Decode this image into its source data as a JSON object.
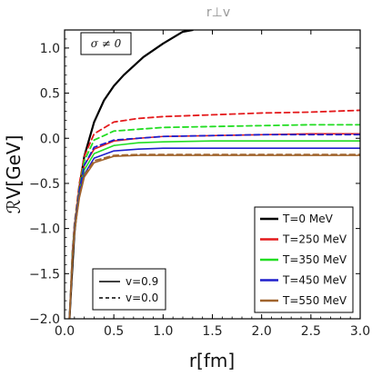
{
  "chart_data": {
    "type": "line",
    "title": "r⊥v",
    "xlabel": "r[fm]",
    "ylabel": "ℛV[GeV]",
    "xlim": [
      0.0,
      3.0
    ],
    "ylim": [
      -2.0,
      1.2
    ],
    "x_ticks": [
      0.0,
      0.5,
      1.0,
      1.5,
      2.0,
      2.5,
      3.0
    ],
    "x_tick_labels": [
      "0.0",
      "0.5",
      "1.0",
      "1.5",
      "2.0",
      "2.5",
      "3.0"
    ],
    "y_ticks": [
      -2.0,
      -1.5,
      -1.0,
      -0.5,
      0.0,
      0.5,
      1.0
    ],
    "y_tick_labels": [
      "−2.0",
      "−1.5",
      "−1.0",
      "−0.5",
      "0.0",
      "0.5",
      "1.0"
    ],
    "annotation": "σ ≠ 0",
    "legend_position": "lower-right",
    "style_legend_position": "lower-left",
    "style_legend": [
      {
        "label": "v=0.9",
        "dash": "solid"
      },
      {
        "label": "v=0.0",
        "dash": "dashed"
      }
    ],
    "series": [
      {
        "name": "T=0 MeV",
        "color": "#000000",
        "dash": "solid",
        "temp": 0
      },
      {
        "name": "T=250 MeV",
        "color": "#e41a1c",
        "dash": "solid",
        "temp": 250
      },
      {
        "name": "T=350 MeV",
        "color": "#22dd22",
        "dash": "solid",
        "temp": 350
      },
      {
        "name": "T=450 MeV",
        "color": "#1f1fcc",
        "dash": "solid",
        "temp": 450
      },
      {
        "name": "T=550 MeV",
        "color": "#a0642d",
        "dash": "solid",
        "temp": 550
      }
    ],
    "curves": [
      {
        "label": "T=0 MeV",
        "color": "#000000",
        "dash": "solid",
        "width": 2.2,
        "x": [
          0.05,
          0.07,
          0.1,
          0.15,
          0.2,
          0.3,
          0.4,
          0.5,
          0.6,
          0.8,
          1.0,
          1.2,
          1.3
        ],
        "y": [
          -2.0,
          -1.6,
          -1.05,
          -0.55,
          -0.2,
          0.18,
          0.42,
          0.58,
          0.7,
          0.9,
          1.05,
          1.18,
          1.2
        ]
      },
      {
        "label": "T=250 MeV, v=0.0",
        "color": "#e41a1c",
        "dash": "dashed",
        "width": 1.8,
        "x": [
          0.05,
          0.08,
          0.1,
          0.15,
          0.2,
          0.3,
          0.5,
          0.75,
          1.0,
          1.5,
          2.0,
          2.5,
          3.0
        ],
        "y": [
          -2.0,
          -1.25,
          -0.95,
          -0.5,
          -0.2,
          0.05,
          0.18,
          0.22,
          0.24,
          0.26,
          0.28,
          0.29,
          0.31
        ]
      },
      {
        "label": "T=250 MeV, v=0.9",
        "color": "#e41a1c",
        "dash": "solid",
        "width": 1.6,
        "x": [
          0.05,
          0.08,
          0.1,
          0.15,
          0.2,
          0.3,
          0.5,
          0.75,
          1.0,
          1.5,
          2.0,
          2.5,
          3.0
        ],
        "y": [
          -2.0,
          -1.25,
          -0.97,
          -0.55,
          -0.3,
          -0.12,
          -0.03,
          0.0,
          0.02,
          0.03,
          0.04,
          0.05,
          0.05
        ]
      },
      {
        "label": "T=350 MeV, v=0.0",
        "color": "#22dd22",
        "dash": "dashed",
        "width": 1.8,
        "x": [
          0.05,
          0.08,
          0.1,
          0.15,
          0.2,
          0.3,
          0.5,
          0.75,
          1.0,
          1.5,
          2.0,
          2.5,
          3.0
        ],
        "y": [
          -2.0,
          -1.27,
          -0.98,
          -0.55,
          -0.25,
          -0.02,
          0.08,
          0.1,
          0.12,
          0.13,
          0.14,
          0.15,
          0.15
        ]
      },
      {
        "label": "T=350 MeV, v=0.9",
        "color": "#22dd22",
        "dash": "solid",
        "width": 1.6,
        "x": [
          0.05,
          0.08,
          0.1,
          0.15,
          0.2,
          0.3,
          0.5,
          0.75,
          1.0,
          1.5,
          2.0,
          2.5,
          3.0
        ],
        "y": [
          -2.0,
          -1.28,
          -1.0,
          -0.6,
          -0.35,
          -0.17,
          -0.08,
          -0.05,
          -0.04,
          -0.03,
          -0.03,
          -0.03,
          -0.03
        ]
      },
      {
        "label": "T=450 MeV, v=0.0",
        "color": "#1f1fcc",
        "dash": "dashed",
        "width": 1.8,
        "x": [
          0.05,
          0.08,
          0.1,
          0.15,
          0.2,
          0.3,
          0.5,
          0.75,
          1.0,
          1.5,
          2.0,
          2.5,
          3.0
        ],
        "y": [
          -2.0,
          -1.3,
          -1.0,
          -0.58,
          -0.3,
          -0.1,
          -0.02,
          0.0,
          0.02,
          0.03,
          0.04,
          0.04,
          0.04
        ]
      },
      {
        "label": "T=450 MeV, v=0.9",
        "color": "#1f1fcc",
        "dash": "solid",
        "width": 1.6,
        "x": [
          0.05,
          0.08,
          0.1,
          0.15,
          0.2,
          0.3,
          0.5,
          0.75,
          1.0,
          1.5,
          2.0,
          2.5,
          3.0
        ],
        "y": [
          -2.0,
          -1.3,
          -1.02,
          -0.63,
          -0.4,
          -0.22,
          -0.14,
          -0.12,
          -0.11,
          -0.11,
          -0.11,
          -0.11,
          -0.11
        ]
      },
      {
        "label": "T=550 MeV, v=0.0",
        "color": "#a0642d",
        "dash": "dashed",
        "width": 1.8,
        "x": [
          0.05,
          0.08,
          0.1,
          0.15,
          0.2,
          0.3,
          0.5,
          0.75,
          1.0,
          1.5,
          2.0,
          2.5,
          3.0
        ],
        "y": [
          -2.0,
          -1.32,
          -1.03,
          -0.64,
          -0.41,
          -0.25,
          -0.19,
          -0.18,
          -0.18,
          -0.18,
          -0.18,
          -0.18,
          -0.18
        ]
      },
      {
        "label": "T=550 MeV, v=0.9",
        "color": "#a0642d",
        "dash": "solid",
        "width": 1.6,
        "x": [
          0.05,
          0.08,
          0.1,
          0.15,
          0.2,
          0.3,
          0.5,
          0.75,
          1.0,
          1.5,
          2.0,
          2.5,
          3.0
        ],
        "y": [
          -2.0,
          -1.32,
          -1.04,
          -0.66,
          -0.43,
          -0.27,
          -0.2,
          -0.19,
          -0.19,
          -0.19,
          -0.19,
          -0.19,
          -0.19
        ]
      }
    ]
  }
}
